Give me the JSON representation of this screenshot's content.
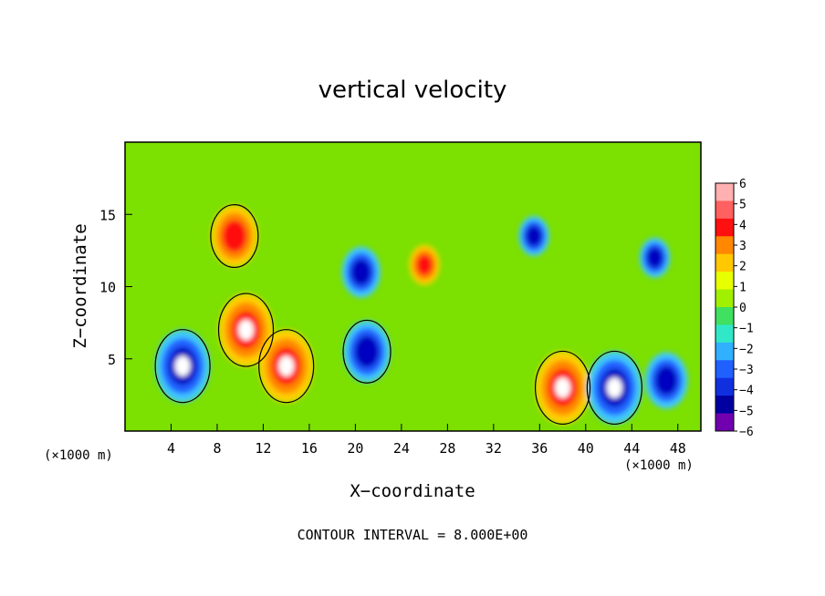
{
  "chart_data": {
    "type": "heatmap",
    "title": "vertical velocity",
    "xlabel": "X−coordinate",
    "ylabel": "Z−coordinate",
    "x_unit": "(×1000 m)",
    "x_ticks": [
      4,
      8,
      12,
      16,
      20,
      24,
      28,
      32,
      36,
      40,
      44,
      48
    ],
    "y_ticks": [
      5,
      10,
      15
    ],
    "xlim": [
      0,
      50
    ],
    "ylim": [
      0,
      20
    ],
    "colorbar": {
      "labels": [
        "6",
        "5",
        "4",
        "3",
        "2",
        "1",
        "0",
        "−1",
        "−2",
        "−3",
        "−4",
        "−5",
        "−6"
      ],
      "colors": [
        "#ffb0b0",
        "#ff6060",
        "#ff1010",
        "#ff8800",
        "#ffc800",
        "#e8ff00",
        "#a0f000",
        "#40e060",
        "#30e8c8",
        "#30b0ff",
        "#2060ff",
        "#1030e0",
        "#0000a0",
        "#7000b0"
      ]
    },
    "features": [
      {
        "x": 5.0,
        "z": 4.5,
        "sign": "negative",
        "strength": 1.0
      },
      {
        "x": 10.5,
        "z": 7.0,
        "sign": "positive",
        "strength": 1.0
      },
      {
        "x": 14.0,
        "z": 4.5,
        "sign": "positive",
        "strength": 1.0
      },
      {
        "x": 9.5,
        "z": 13.5,
        "sign": "positive",
        "strength": 0.8
      },
      {
        "x": 20.5,
        "z": 11.0,
        "sign": "negative",
        "strength": 0.6
      },
      {
        "x": 21.0,
        "z": 5.5,
        "sign": "negative",
        "strength": 0.8
      },
      {
        "x": 26.0,
        "z": 11.5,
        "sign": "positive",
        "strength": 0.4
      },
      {
        "x": 38.0,
        "z": 3.0,
        "sign": "positive",
        "strength": 1.0
      },
      {
        "x": 42.5,
        "z": 3.0,
        "sign": "negative",
        "strength": 1.0
      },
      {
        "x": 47.0,
        "z": 3.5,
        "sign": "negative",
        "strength": 0.7
      },
      {
        "x": 35.5,
        "z": 13.5,
        "sign": "negative",
        "strength": 0.4
      },
      {
        "x": 46.0,
        "z": 12.0,
        "sign": "negative",
        "strength": 0.4
      }
    ],
    "grid": false,
    "legend": "right"
  },
  "footer": {
    "contour_interval": "CONTOUR INTERVAL = 8.000E+00"
  }
}
